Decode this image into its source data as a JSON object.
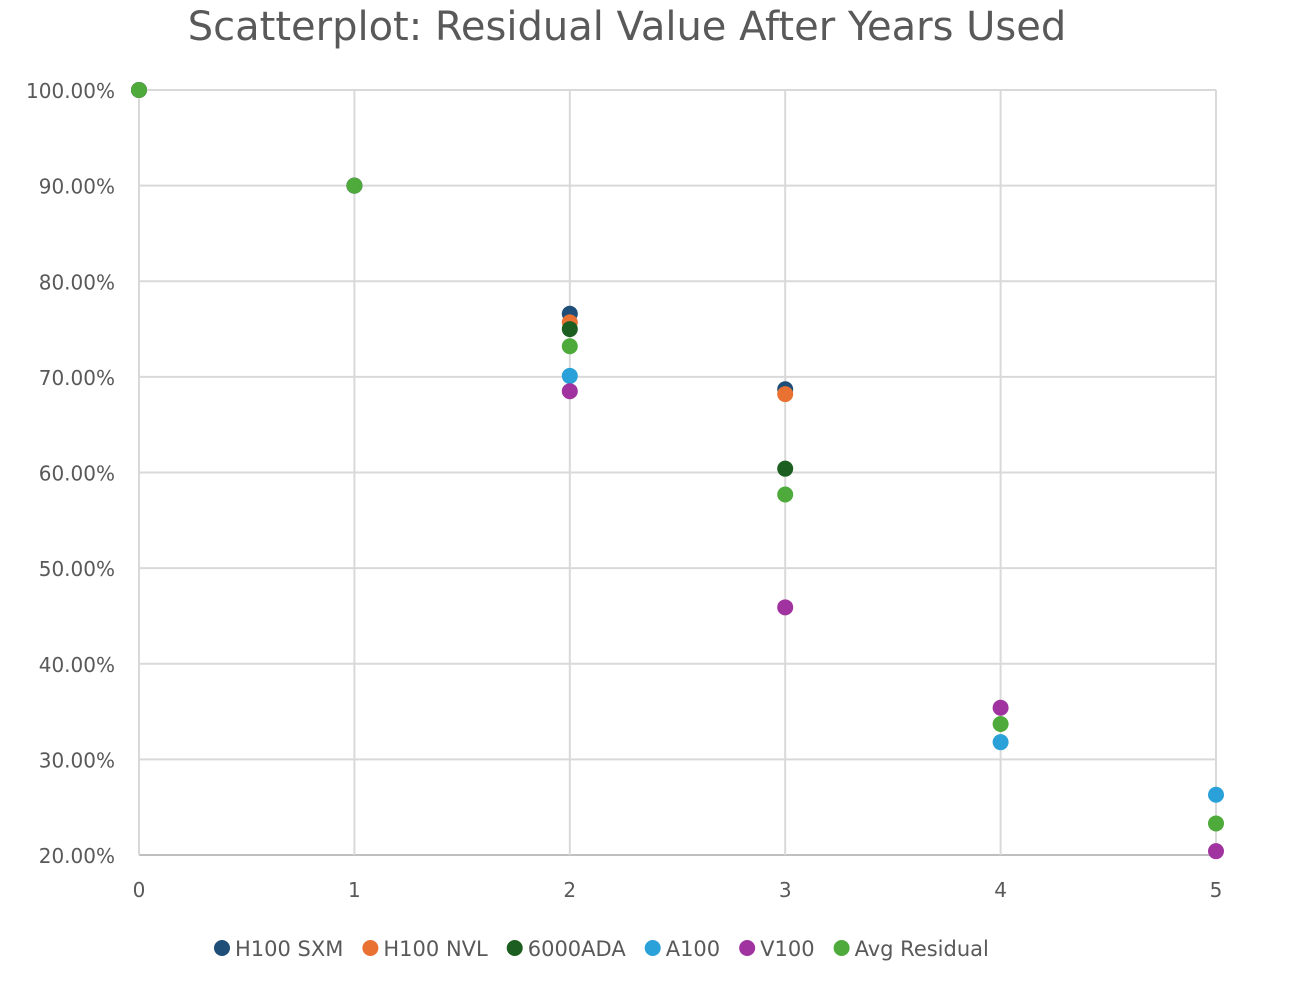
{
  "chart_data": {
    "type": "scatter",
    "title": "Scatterplot: Residual Value After Years Used",
    "xlabel": "",
    "ylabel": "",
    "xlim": [
      0,
      5
    ],
    "ylim": [
      0.2,
      1.0
    ],
    "x_ticks": [
      "0",
      "1",
      "2",
      "3",
      "4",
      "5"
    ],
    "y_ticks": [
      "100.00%",
      "90.00%",
      "80.00%",
      "70.00%",
      "60.00%",
      "50.00%",
      "40.00%",
      "30.00%",
      "20.00%"
    ],
    "grid": true,
    "legend_position": "bottom",
    "series": [
      {
        "name": "H100 SXM",
        "color": "#1f4e79",
        "points": [
          {
            "x": 0,
            "y": 1.0
          },
          {
            "x": 1,
            "y": 0.9
          },
          {
            "x": 2,
            "y": 0.766
          },
          {
            "x": 3,
            "y": 0.687
          }
        ]
      },
      {
        "name": "H100 NVL",
        "color": "#e97132",
        "points": [
          {
            "x": 0,
            "y": 1.0
          },
          {
            "x": 1,
            "y": 0.9
          },
          {
            "x": 2,
            "y": 0.757
          },
          {
            "x": 3,
            "y": 0.682
          }
        ]
      },
      {
        "name": "6000ADA",
        "color": "#1b5e20",
        "points": [
          {
            "x": 0,
            "y": 1.0
          },
          {
            "x": 1,
            "y": 0.9
          },
          {
            "x": 2,
            "y": 0.75
          },
          {
            "x": 3,
            "y": 0.604
          }
        ]
      },
      {
        "name": "A100",
        "color": "#2aa1d8",
        "points": [
          {
            "x": 0,
            "y": 1.0
          },
          {
            "x": 1,
            "y": 0.9
          },
          {
            "x": 2,
            "y": 0.701
          },
          {
            "x": 4,
            "y": 0.318
          },
          {
            "x": 5,
            "y": 0.263
          }
        ]
      },
      {
        "name": "V100",
        "color": "#a0339f",
        "points": [
          {
            "x": 0,
            "y": 1.0
          },
          {
            "x": 1,
            "y": 0.9
          },
          {
            "x": 2,
            "y": 0.685
          },
          {
            "x": 3,
            "y": 0.459
          },
          {
            "x": 4,
            "y": 0.354
          },
          {
            "x": 5,
            "y": 0.204
          }
        ]
      },
      {
        "name": "Avg Residual",
        "color": "#4eaa3b",
        "points": [
          {
            "x": 0,
            "y": 1.0
          },
          {
            "x": 1,
            "y": 0.9
          },
          {
            "x": 2,
            "y": 0.732
          },
          {
            "x": 3,
            "y": 0.577
          },
          {
            "x": 4,
            "y": 0.337
          },
          {
            "x": 5,
            "y": 0.233
          }
        ]
      }
    ]
  }
}
